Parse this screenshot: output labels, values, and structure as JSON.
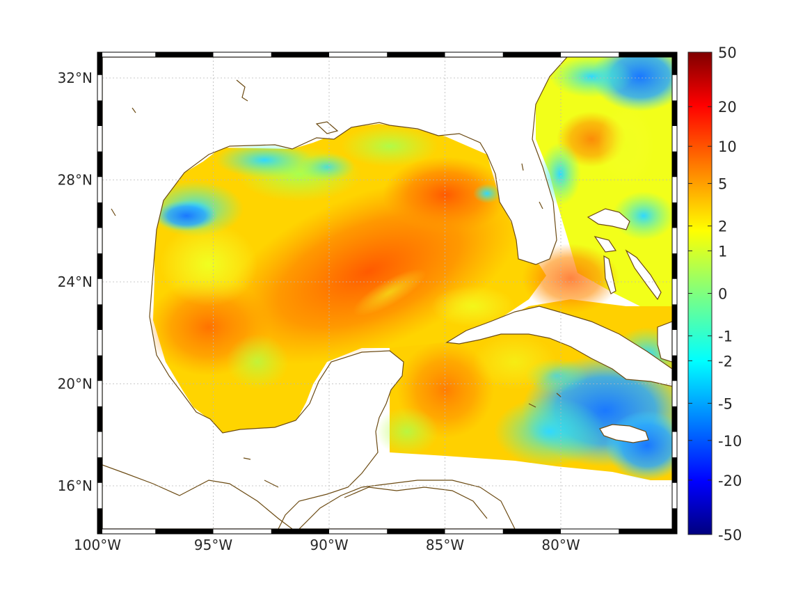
{
  "map": {
    "lon_range": [
      -100,
      -75
    ],
    "lat_range": [
      14.3,
      33.0
    ],
    "lon_ticks": [
      {
        "value": -100,
        "label": "100°W"
      },
      {
        "value": -95,
        "label": "95°W"
      },
      {
        "value": -90,
        "label": "90°W"
      },
      {
        "value": -85,
        "label": "85°W"
      },
      {
        "value": -80,
        "label": "80°W"
      }
    ],
    "lat_ticks": [
      {
        "value": 16,
        "label": "16°N"
      },
      {
        "value": 20,
        "label": "20°N"
      },
      {
        "value": 24,
        "label": "24°N"
      },
      {
        "value": 28,
        "label": "28°N"
      },
      {
        "value": 32,
        "label": "32°N"
      }
    ],
    "grid": true,
    "frame_style": "alternating black-white border",
    "coastline_color": "#6b4a12",
    "land_color": "#ffffff"
  },
  "colorbar": {
    "colormap": "jet",
    "placement": "right",
    "ticks": [
      {
        "value": 50,
        "label": "50"
      },
      {
        "value": 20,
        "label": "20"
      },
      {
        "value": 10,
        "label": "10"
      },
      {
        "value": 5,
        "label": "5"
      },
      {
        "value": 2,
        "label": "2"
      },
      {
        "value": 1,
        "label": "1"
      },
      {
        "value": 0,
        "label": "0"
      },
      {
        "value": -1,
        "label": "-1"
      },
      {
        "value": -2,
        "label": "-2"
      },
      {
        "value": -5,
        "label": "-5"
      },
      {
        "value": -10,
        "label": "-10"
      },
      {
        "value": -20,
        "label": "-20"
      },
      {
        "value": -50,
        "label": "-50"
      }
    ]
  }
}
